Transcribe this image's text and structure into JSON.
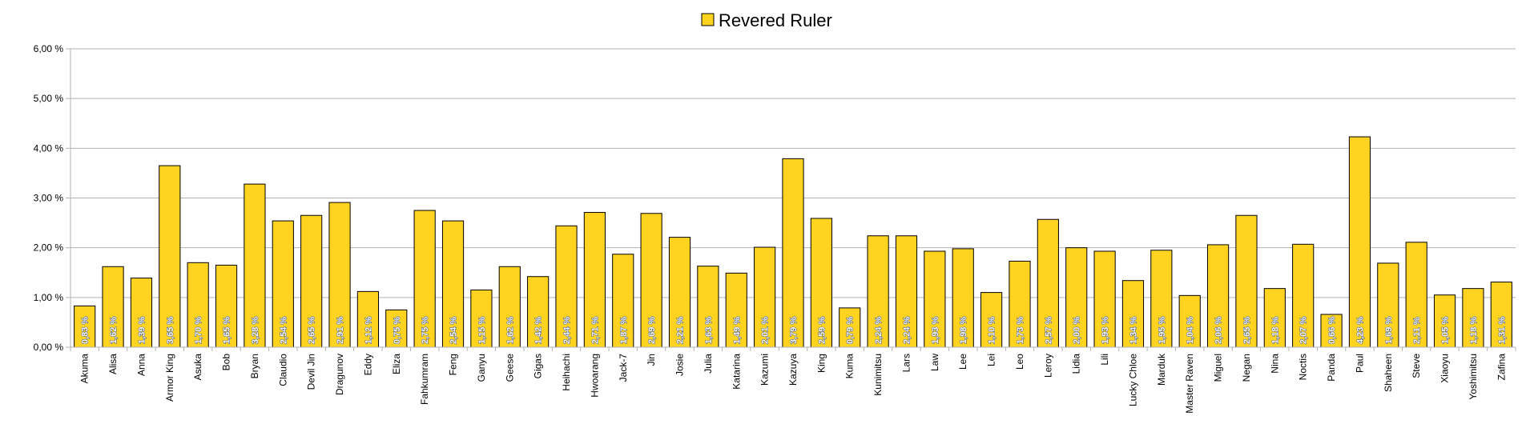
{
  "chart_data": {
    "type": "bar",
    "title": "",
    "xlabel": "",
    "ylabel": "",
    "ylim": [
      0,
      6
    ],
    "yticks": [
      0,
      1,
      2,
      3,
      4,
      5,
      6
    ],
    "ytick_labels": [
      "0,00 %",
      "1,00 %",
      "2,00 %",
      "3,00 %",
      "4,00 %",
      "5,00 %",
      "6,00 %"
    ],
    "grid": true,
    "legend_position": "top-center",
    "bar_color": "#FFD320",
    "bar_edge_color": "#000000",
    "categories": [
      "Akuma",
      "Alisa",
      "Anna",
      "Armor King",
      "Asuka",
      "Bob",
      "Bryan",
      "Claudio",
      "Devil Jin",
      "Dragunov",
      "Eddy",
      "Eliza",
      "Fahkumram",
      "Feng",
      "Ganyu",
      "Geese",
      "Gigas",
      "Heihachi",
      "Hwoarang",
      "Jack-7",
      "Jin",
      "Josie",
      "Julia",
      "Katarina",
      "Kazumi",
      "Kazuya",
      "King",
      "Kuma",
      "Kunimitsu",
      "Lars",
      "Law",
      "Lee",
      "Lei",
      "Leo",
      "Leroy",
      "Lidia",
      "Lili",
      "Lucky Chloe",
      "Marduk",
      "Master Raven",
      "Miguel",
      "Negan",
      "Nina",
      "Noctis",
      "Panda",
      "Paul",
      "Shaheen",
      "Steve",
      "Xiaoyu",
      "Yoshimitsu",
      "Zafina"
    ],
    "series": [
      {
        "name": "Revered Ruler",
        "values": [
          0.83,
          1.62,
          1.39,
          3.65,
          1.7,
          1.65,
          3.28,
          2.54,
          2.65,
          2.91,
          1.12,
          0.75,
          2.75,
          2.54,
          1.15,
          1.62,
          1.42,
          2.44,
          2.71,
          1.87,
          2.69,
          2.21,
          1.63,
          1.49,
          2.01,
          3.79,
          2.59,
          0.79,
          2.24,
          2.24,
          1.93,
          1.98,
          1.1,
          1.73,
          2.57,
          2.0,
          1.93,
          1.34,
          1.95,
          1.04,
          2.06,
          2.65,
          1.18,
          2.07,
          0.66,
          4.23,
          1.69,
          2.11,
          1.05,
          1.18,
          1.31
        ],
        "value_labels": [
          "0,83 %",
          "1,62 %",
          "1,39 %",
          "3,65 %",
          "1,70 %",
          "1,65 %",
          "3,28 %",
          "2,54 %",
          "2,65 %",
          "2,91 %",
          "1,12 %",
          "0,75 %",
          "2,75 %",
          "2,54 %",
          "1,15 %",
          "1,62 %",
          "1,42 %",
          "2,44 %",
          "2,71 %",
          "1,87 %",
          "2,69 %",
          "2,21 %",
          "1,63 %",
          "1,49 %",
          "2,01 %",
          "3,79 %",
          "2,59 %",
          "0,79 %",
          "2,24 %",
          "2,24 %",
          "1,93 %",
          "1,98 %",
          "1,10 %",
          "1,73 %",
          "2,57 %",
          "2,00 %",
          "1,93 %",
          "1,34 %",
          "1,95 %",
          "1,04 %",
          "2,06 %",
          "2,65 %",
          "1,18 %",
          "2,07 %",
          "0,66 %",
          "4,23 %",
          "1,69 %",
          "2,11 %",
          "1,05 %",
          "1,18 %",
          "1,31 %"
        ]
      }
    ]
  }
}
